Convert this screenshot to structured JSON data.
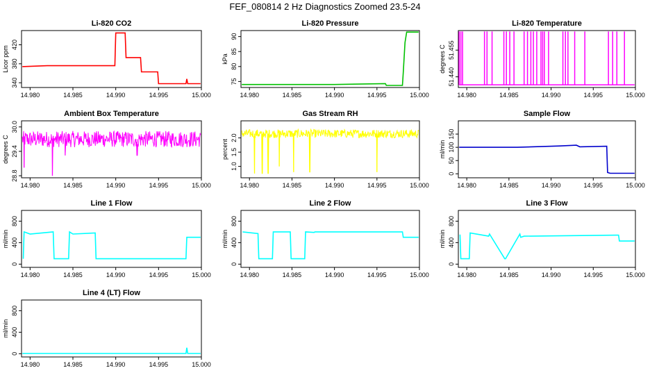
{
  "title": "FEF_080814  2 Hz Diagnostics Zoomed 23.5-24",
  "chart_data": [
    {
      "id": "co2",
      "type": "line",
      "title": "Li-820 CO2",
      "ylabel": "Licor ppm",
      "color": "#ff0000",
      "xlim": [
        14.979,
        15.0
      ],
      "ylim": [
        330,
        450
      ],
      "xticks": [
        14.98,
        14.985,
        14.99,
        14.995,
        15.0
      ],
      "xtick_labels": [
        "14.980",
        "14.985",
        "14.990",
        "14.995",
        "15.000"
      ],
      "yticks": [
        340,
        380,
        420
      ],
      "ytick_labels": [
        "340",
        "380",
        "420"
      ],
      "series": [
        {
          "x": [
            14.9791,
            14.982,
            14.9899,
            14.99,
            14.9911,
            14.9912,
            14.9929,
            14.993,
            14.9949,
            14.995,
            14.9982,
            14.9983,
            14.9984,
            14.9999
          ],
          "y": [
            374,
            376,
            376,
            445,
            445,
            393,
            393,
            363,
            363,
            338,
            338,
            348,
            338,
            338
          ]
        }
      ]
    },
    {
      "id": "pressure",
      "type": "line",
      "title": "Li-820 Pressure",
      "ylabel": "kPa",
      "color": "#00c000",
      "xlim": [
        14.979,
        15.0
      ],
      "ylim": [
        73,
        92
      ],
      "xticks": [
        14.98,
        14.985,
        14.99,
        14.995,
        15.0
      ],
      "xtick_labels": [
        "14.980",
        "14.985",
        "14.990",
        "14.995",
        "15.000"
      ],
      "yticks": [
        75,
        80,
        85,
        90
      ],
      "ytick_labels": [
        "75",
        "80",
        "85",
        "90"
      ],
      "series": [
        {
          "x": [
            14.9791,
            14.99,
            14.996,
            14.9961,
            14.998,
            14.9981,
            14.9983,
            14.9985,
            14.9999
          ],
          "y": [
            74,
            74,
            74.3,
            73.7,
            73.7,
            78,
            88,
            91.5,
            91.5
          ]
        }
      ]
    },
    {
      "id": "temperature",
      "type": "line",
      "title": "Li-820 Temperature",
      "ylabel": "degrees C",
      "color": "#ff00ff",
      "xlim": [
        14.979,
        15.0
      ],
      "ylim": [
        51.434,
        51.466
      ],
      "xticks": [
        14.98,
        14.985,
        14.99,
        14.995,
        15.0
      ],
      "xtick_labels": [
        "14.980",
        "14.985",
        "14.990",
        "14.995",
        "15.000"
      ],
      "yticks": [
        51.44,
        51.455
      ],
      "ytick_labels": [
        "51.440",
        "51.455"
      ],
      "baseline": 51.4355,
      "spike_top": 51.4655,
      "spikes": [
        14.9791,
        14.9793,
        14.9795,
        14.9821,
        14.9824,
        14.983,
        14.9844,
        14.9847,
        14.9851,
        14.9856,
        14.9868,
        14.9872,
        14.9876,
        14.9879,
        14.9883,
        14.9888,
        14.989,
        14.9892,
        14.9897,
        14.9914,
        14.9917,
        14.992,
        14.9928,
        14.994,
        14.9968,
        14.9973,
        14.9978,
        14.9987
      ]
    },
    {
      "id": "ambient",
      "type": "line",
      "title": "Ambient Box Temperature",
      "ylabel": "degrees C",
      "color": "#ff00ff",
      "xlim": [
        14.979,
        15.0
      ],
      "ylim": [
        28.75,
        30.15
      ],
      "xticks": [
        14.98,
        14.985,
        14.99,
        14.995,
        15.0
      ],
      "xtick_labels": [
        "14.980",
        "14.985",
        "14.990",
        "14.995",
        "15.000"
      ],
      "yticks": [
        28.8,
        29.4,
        30.0
      ],
      "ytick_labels": [
        "28.8",
        "29.4",
        "30.0"
      ],
      "center": 29.7,
      "noise": 0.2,
      "dips": [
        [
          14.9793,
          29.0
        ],
        [
          14.9826,
          28.8
        ],
        [
          14.9841,
          29.3
        ],
        [
          14.9925,
          29.3
        ]
      ]
    },
    {
      "id": "rh",
      "type": "line",
      "title": "Gas Stream RH",
      "ylabel": "percent",
      "color": "#ffff00",
      "xlim": [
        14.979,
        15.0
      ],
      "ylim": [
        0.6,
        2.6
      ],
      "xticks": [
        14.98,
        14.985,
        14.99,
        14.995,
        15.0
      ],
      "xtick_labels": [
        "14.980",
        "14.985",
        "14.990",
        "14.995",
        "15.000"
      ],
      "yticks": [
        1.0,
        1.5,
        2.0
      ],
      "ytick_labels": [
        "1.0",
        "1.5",
        "2.0"
      ],
      "center": 2.15,
      "noise": 0.15,
      "dips": [
        [
          14.9806,
          0.75
        ],
        [
          14.9815,
          0.75
        ],
        [
          14.9822,
          0.75
        ],
        [
          14.9835,
          1.0
        ],
        [
          14.9852,
          0.8
        ],
        [
          14.9871,
          0.8
        ],
        [
          14.995,
          0.8
        ]
      ]
    },
    {
      "id": "sample",
      "type": "line",
      "title": "Sample Flow",
      "ylabel": "ml/min",
      "color": "#0000cc",
      "xlim": [
        14.979,
        15.0
      ],
      "ylim": [
        -15,
        200
      ],
      "xticks": [
        14.98,
        14.985,
        14.99,
        14.995,
        15.0
      ],
      "xtick_labels": [
        "14.980",
        "14.985",
        "14.990",
        "14.995",
        "15.000"
      ],
      "yticks": [
        0,
        50,
        100,
        150
      ],
      "ytick_labels": [
        "0",
        "50",
        "100",
        "150"
      ],
      "series": [
        {
          "x": [
            14.9791,
            14.986,
            14.991,
            14.993,
            14.9934,
            14.9966,
            14.9967,
            14.997,
            14.9999
          ],
          "y": [
            100,
            100,
            105,
            108,
            102,
            104,
            5,
            2,
            2
          ]
        }
      ]
    },
    {
      "id": "line1",
      "type": "line",
      "title": "Line 1 Flow",
      "ylabel": "ml/min",
      "color": "#00ffff",
      "xlim": [
        14.979,
        15.0
      ],
      "ylim": [
        -60,
        1000
      ],
      "xticks": [
        14.98,
        14.985,
        14.99,
        14.995,
        15.0
      ],
      "xtick_labels": [
        "14.980",
        "14.985",
        "14.990",
        "14.995",
        "15.000"
      ],
      "yticks": [
        0,
        400,
        800
      ],
      "ytick_labels": [
        "0",
        "400",
        "800"
      ],
      "series": [
        {
          "x": [
            14.9792,
            14.9793,
            14.98,
            14.9827,
            14.9828,
            14.9845,
            14.9846,
            14.985,
            14.9876,
            14.9877,
            14.9982,
            14.9983,
            14.9999
          ],
          "y": [
            100,
            600,
            560,
            600,
            100,
            100,
            600,
            560,
            580,
            100,
            100,
            500,
            500
          ]
        }
      ]
    },
    {
      "id": "line2",
      "type": "line",
      "title": "Line 2 Flow",
      "ylabel": "ml/min",
      "color": "#00ffff",
      "xlim": [
        14.979,
        15.0
      ],
      "ylim": [
        -60,
        1000
      ],
      "xticks": [
        14.98,
        14.985,
        14.99,
        14.995,
        15.0
      ],
      "xtick_labels": [
        "14.980",
        "14.985",
        "14.990",
        "14.995",
        "15.000"
      ],
      "yticks": [
        0,
        400,
        800
      ],
      "ytick_labels": [
        "0",
        "400",
        "800"
      ],
      "series": [
        {
          "x": [
            14.9792,
            14.981,
            14.9811,
            14.9827,
            14.9828,
            14.9848,
            14.9849,
            14.9865,
            14.9866,
            14.9876,
            14.9877,
            14.998,
            14.9981,
            14.9999
          ],
          "y": [
            600,
            570,
            100,
            100,
            600,
            600,
            100,
            100,
            600,
            590,
            600,
            600,
            500,
            500
          ]
        }
      ]
    },
    {
      "id": "line3",
      "type": "line",
      "title": "Line 3 Flow",
      "ylabel": "ml/min",
      "color": "#00ffff",
      "xlim": [
        14.979,
        15.0
      ],
      "ylim": [
        -60,
        1000
      ],
      "xticks": [
        14.98,
        14.985,
        14.99,
        14.995,
        15.0
      ],
      "xtick_labels": [
        "14.980",
        "14.985",
        "14.990",
        "14.995",
        "15.000"
      ],
      "yticks": [
        0,
        400,
        800
      ],
      "ytick_labels": [
        "0",
        "400",
        "800"
      ],
      "series": [
        {
          "x": [
            14.9792,
            14.9793,
            14.9803,
            14.9804,
            14.9826,
            14.9827,
            14.9845,
            14.9846,
            14.9863,
            14.9864,
            14.9868,
            14.998,
            14.9981,
            14.9999
          ],
          "y": [
            550,
            100,
            100,
            580,
            520,
            560,
            100,
            100,
            560,
            500,
            520,
            540,
            430,
            430
          ]
        }
      ]
    },
    {
      "id": "line4",
      "type": "line",
      "title": "Line 4 (LT) Flow",
      "ylabel": "ml/min",
      "color": "#00ffff",
      "xlim": [
        14.979,
        15.0
      ],
      "ylim": [
        -60,
        1000
      ],
      "xticks": [
        14.98,
        14.985,
        14.99,
        14.995,
        15.0
      ],
      "xtick_labels": [
        "14.980",
        "14.985",
        "14.990",
        "14.995",
        "15.000"
      ],
      "yticks": [
        0,
        400,
        800
      ],
      "ytick_labels": [
        "0",
        "400",
        "800"
      ],
      "series": [
        {
          "x": [
            14.9791,
            14.9982,
            14.9983,
            14.9984,
            14.9999
          ],
          "y": [
            5,
            5,
            110,
            5,
            5
          ]
        }
      ]
    }
  ]
}
